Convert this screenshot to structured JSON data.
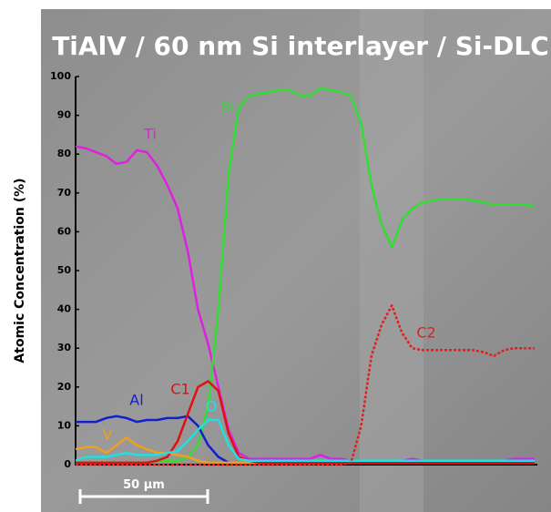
{
  "chart_data": {
    "type": "line",
    "title": "TiAlV / 60 nm Si interlayer / Si-DLC",
    "y_label": "Atomic Concentration (%)",
    "scale_bar": {
      "label": "50 µm",
      "length": 50
    },
    "x": [
      0,
      4,
      8,
      12,
      16,
      20,
      24,
      28,
      32,
      36,
      40,
      44,
      48,
      52,
      56,
      60,
      64,
      68,
      72,
      76,
      80,
      84,
      88,
      92,
      96,
      100,
      104,
      108,
      112,
      116,
      120,
      124,
      128,
      132,
      136,
      140,
      144,
      148,
      152,
      156,
      160,
      164,
      168,
      172,
      176,
      180
    ],
    "xlim": [
      0,
      180
    ],
    "ylim": [
      0,
      100
    ],
    "yticks": [
      0,
      10,
      20,
      30,
      40,
      50,
      60,
      70,
      80,
      90,
      100
    ],
    "series": [
      {
        "name": "Ti",
        "color": "#e020e0",
        "values": [
          82,
          81.5,
          80.5,
          79.5,
          77.5,
          78,
          81,
          80.5,
          77,
          72,
          66,
          55,
          40,
          31,
          20,
          9,
          3,
          1.5,
          1.5,
          1.5,
          1.5,
          1.5,
          1.5,
          1.5,
          2.5,
          1.5,
          1.5,
          1,
          1,
          1,
          1,
          1,
          1,
          1.5,
          1,
          1,
          1,
          1,
          1,
          1,
          1,
          1,
          1,
          1.5,
          1.5,
          1.5
        ]
      },
      {
        "name": "Si",
        "color": "#33dd33",
        "values": [
          0.5,
          0.5,
          0.5,
          0.5,
          0.5,
          0.5,
          0.5,
          0.5,
          1,
          1,
          1,
          2,
          5,
          15,
          40,
          75,
          92,
          95,
          95.5,
          96,
          96.5,
          96.5,
          95,
          95,
          97,
          96.5,
          96,
          95,
          88,
          72,
          62,
          56,
          63,
          66,
          67.5,
          68,
          68.5,
          68.5,
          68.5,
          68,
          67.5,
          67,
          67,
          67,
          67,
          66.5
        ]
      },
      {
        "name": "Al",
        "color": "#1020d0",
        "values": [
          11,
          11,
          11,
          12,
          12.5,
          12,
          11,
          11.5,
          11.5,
          12,
          12,
          12.5,
          10,
          5,
          2,
          0.5,
          0.3,
          0.3,
          0.3,
          0.3,
          0.3,
          0.3,
          0.3,
          0.3,
          0.3,
          0.3,
          0.3,
          0.3,
          0.3,
          0.3,
          0.3,
          0.3,
          0.3,
          0.3,
          0.3,
          0.3,
          0.3,
          0.3,
          0.3,
          0.3,
          0.3,
          0.3,
          0.3,
          0.3,
          0.3,
          0.3
        ]
      },
      {
        "name": "V",
        "color": "#f0a020",
        "values": [
          4,
          4.5,
          4.5,
          3,
          5,
          7,
          5,
          4,
          3,
          3,
          2.5,
          2,
          1,
          0.5,
          0.5,
          0.5,
          0.5,
          0.5,
          0.5,
          0.5,
          0.5,
          0.5,
          0.5,
          0.5,
          0.5,
          0.5,
          0.5,
          0.5,
          0.5,
          0.5,
          0.5,
          0.5,
          0.5,
          0.5,
          0.5,
          0.5,
          0.5,
          0.5,
          0.5,
          0.5,
          0.5,
          0.5,
          0.5,
          0.5,
          0.5,
          0.5
        ]
      },
      {
        "name": "C1",
        "color": "#e01010",
        "values": [
          0.5,
          0.5,
          0.5,
          0.5,
          0.5,
          0.5,
          0.5,
          0.5,
          1,
          2,
          6,
          13,
          20,
          21.5,
          19,
          8,
          2,
          1,
          0.5,
          0.5,
          0.5,
          0.5,
          0.5,
          0.5,
          0.5,
          0.5,
          0.5,
          0.5,
          0.5,
          0.5,
          0.5,
          0.5,
          0.5,
          0.5,
          0.5,
          0.5,
          0.5,
          0.5,
          0.5,
          0.5,
          0.5,
          0.5,
          0.5,
          0.5,
          0.5,
          0.5
        ]
      },
      {
        "name": "O",
        "color": "#20e0e0",
        "values": [
          1,
          2,
          2,
          2,
          2.5,
          3,
          2.5,
          2.5,
          2.5,
          3,
          3.5,
          6,
          9,
          11.5,
          11.5,
          5,
          1.5,
          1,
          1,
          1,
          1,
          1,
          1,
          1,
          1,
          1,
          1,
          1,
          1,
          1,
          1,
          1,
          1,
          1,
          1,
          1,
          1,
          1,
          1,
          1,
          1,
          1,
          1,
          1,
          1,
          1
        ]
      },
      {
        "name": "C2",
        "color": "#e02020",
        "dash": true,
        "values": [
          0,
          0,
          0,
          0,
          0,
          0,
          0,
          0,
          0,
          0,
          0,
          0,
          0,
          0,
          0,
          0,
          0,
          0,
          0,
          0,
          0,
          0,
          0,
          0,
          0,
          0,
          0,
          0.5,
          10,
          28,
          36,
          41,
          34,
          30,
          29.5,
          29.5,
          29.5,
          29.5,
          29.5,
          29.5,
          29,
          28,
          29.5,
          30,
          30,
          30
        ]
      }
    ]
  }
}
